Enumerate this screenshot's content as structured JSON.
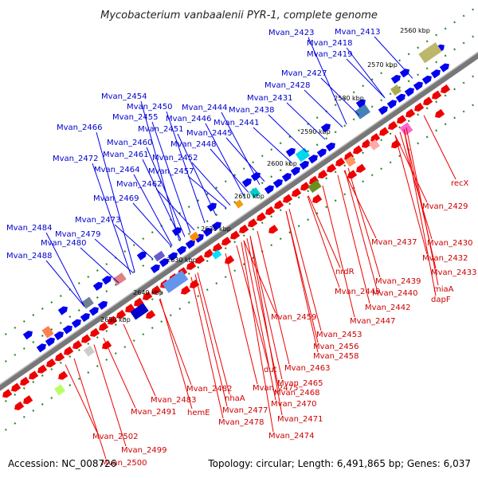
{
  "title": "Mycobacterium vanbaalenii PYR-1, complete genome",
  "footer": {
    "accession": "Accession: NC_008726",
    "info": "Topology: circular; Length: 6,491,865 bp; Genes: 6,037"
  },
  "ticks": [
    "2560 kbp",
    "2570 kbp",
    "2580 kbp",
    "2590 kbp",
    "2600 kbp",
    "2610 kbp",
    "2620 kbp",
    "2630 kbp",
    "2640 kbp",
    "2650 kbp"
  ],
  "colors": {
    "plus_strand": "#0000ee",
    "minus_strand": "#ee0000",
    "backbone": "#777777"
  },
  "top_labels": [
    "Mvan_2423",
    "Mvan_2413",
    "Mvan_2418",
    "Mvan_2419",
    "Mvan_2427",
    "Mvan_2428",
    "Mvan_2431",
    "Mvan_2454",
    "Mvan_2450",
    "Mvan_2444",
    "Mvan_2438",
    "Mvan_2455",
    "Mvan_2446",
    "Mvan_2441",
    "Mvan_2466",
    "Mvan_2451",
    "Mvan_2445",
    "Mvan_2460",
    "Mvan_2448",
    "Mvan_2461",
    "Mvan_2472",
    "Mvan_2452",
    "Mvan_2464",
    "Mvan_2457",
    "Mvan_2462",
    "Mvan_2469",
    "Mvan_2473",
    "Mvan_2484",
    "Mvan_2479",
    "Mvan_2480",
    "Mvan_2488"
  ],
  "bottom_labels": [
    "recX",
    "Mvan_2429",
    "Mvan_2430",
    "Mvan_2437",
    "Mvan_2432",
    "Mvan_2433",
    "nrdR",
    "Mvan_2439",
    "miaA",
    "Mvan_2440",
    "dapF",
    "Mvan_2449",
    "Mvan_2442",
    "Mvan_2447",
    "Mvan_2459",
    "Mvan_2453",
    "Mvan_2456",
    "Mvan_2458",
    "Mvan_2463",
    "dut",
    "Mvan_2465",
    "Mvan_2468",
    "Mvan_2475",
    "Mvan_2470",
    "Mvan_2482",
    "Mvan_2471",
    "nhaA",
    "Mvan_2477",
    "Mvan_2483",
    "hemE",
    "Mvan_2478",
    "Mvan_2474",
    "Mvan_2491",
    "Mvan_2502",
    "Mvan_2499",
    "Mvan_2500"
  ]
}
